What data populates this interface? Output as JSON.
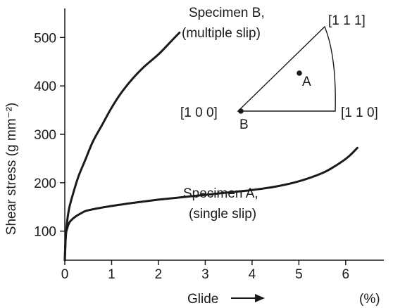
{
  "chart_data": {
    "type": "line",
    "xlabel": "Glide",
    "xunit": "(%)",
    "ylabel": "Shear stress (g mm⁻²)",
    "xlim": [
      0,
      6.8
    ],
    "ylim": [
      40,
      560
    ],
    "xticks": [
      0,
      1,
      2,
      3,
      4,
      5,
      6
    ],
    "yticks": [
      100,
      200,
      300,
      400,
      500
    ],
    "grid": false,
    "series": [
      {
        "name": "Specimen B,",
        "name_line2": "(multiple slip)",
        "x": [
          0,
          0.02,
          0.05,
          0.1,
          0.2,
          0.3,
          0.45,
          0.6,
          0.8,
          1.0,
          1.2,
          1.45,
          1.7,
          2.0,
          2.25,
          2.45
        ],
        "y": [
          40,
          85,
          120,
          150,
          185,
          215,
          250,
          285,
          320,
          355,
          385,
          415,
          440,
          465,
          490,
          510
        ]
      },
      {
        "name": "Specimen A,",
        "name_line2": "(single slip)",
        "x": [
          0,
          0.02,
          0.05,
          0.1,
          0.2,
          0.35,
          0.5,
          1.0,
          1.5,
          2.0,
          2.5,
          3.0,
          3.5,
          4.0,
          4.5,
          5.0,
          5.5,
          5.8,
          6.05,
          6.25
        ],
        "y": [
          40,
          90,
          105,
          118,
          128,
          137,
          143,
          152,
          159,
          165,
          170,
          175,
          180,
          185,
          192,
          203,
          220,
          236,
          253,
          272
        ]
      }
    ],
    "inset": {
      "corners": [
        "[1 0 0]",
        "[1 1 0]",
        "[1 1 1]"
      ],
      "points": [
        {
          "label": "A"
        },
        {
          "label": "B"
        }
      ]
    }
  }
}
